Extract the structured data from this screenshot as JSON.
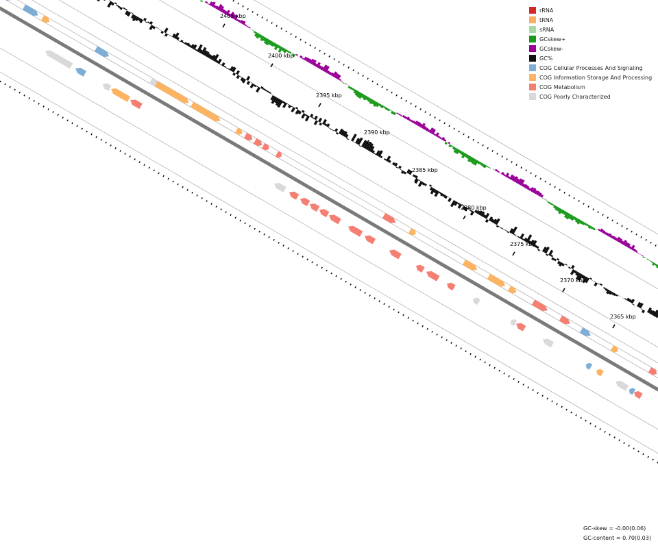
{
  "chart_data": {
    "type": "genome-map",
    "position_labels": [
      "2405 kbp",
      "2400 kbp",
      "2395 kbp",
      "2390 kbp",
      "2385 kbp",
      "2380 kbp",
      "2375 kbp",
      "2370 kbp",
      "2365 kbp"
    ],
    "legend": [
      {
        "label": "rRNA",
        "color": "#d62728"
      },
      {
        "label": "tRNA",
        "color": "#fdae61"
      },
      {
        "label": "sRNA",
        "color": "#a6dba0"
      },
      {
        "label": "GCskew+",
        "color": "#1a9a1a"
      },
      {
        "label": "GCskew-",
        "color": "#990099"
      },
      {
        "label": "GC%",
        "color": "#111111"
      },
      {
        "label": "COG Cellular Processes And Signaling",
        "color": "#7eaed6"
      },
      {
        "label": "COG Information Storage And Processing",
        "color": "#fdb462"
      },
      {
        "label": "COG Metabolism",
        "color": "#f47f72"
      },
      {
        "label": "COG Poorly Characterized",
        "color": "#d9d9d9"
      }
    ],
    "stats": {
      "gc_skew": "GC-skew = -0.00(0.06)",
      "gc_content": "GC-content = 0.70(0.03)"
    }
  }
}
